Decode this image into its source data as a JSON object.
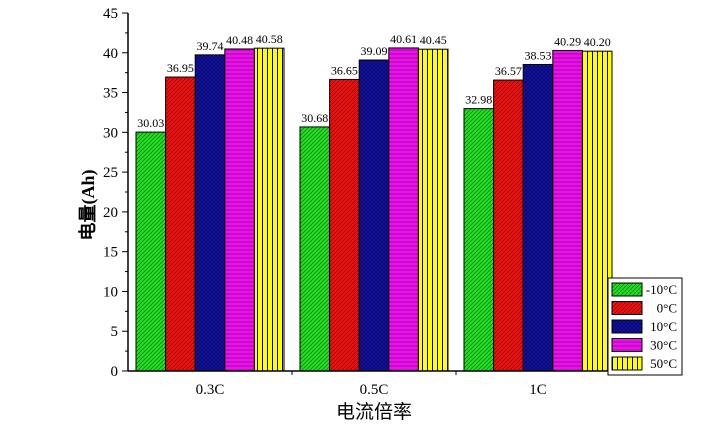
{
  "chart_data": {
    "type": "bar",
    "title": "",
    "xlabel": "电流倍率",
    "ylabel": "电量(Ah)",
    "ylim": [
      0,
      45
    ],
    "yticks": [
      0,
      5,
      10,
      15,
      20,
      25,
      30,
      35,
      40,
      45
    ],
    "categories": [
      "0.3C",
      "0.5C",
      "1C"
    ],
    "grid": false,
    "legend_position": "bottom-right",
    "series": [
      {
        "name": "-10°C",
        "color": "#22dd22",
        "pattern": "diagonal",
        "values": [
          30.03,
          30.68,
          32.98
        ],
        "labels": [
          "30.03",
          "30.68",
          "32.98"
        ]
      },
      {
        "name": "0°C",
        "color": "#ee1111",
        "pattern": "diagonal",
        "values": [
          36.95,
          36.65,
          36.57
        ],
        "labels": [
          "36.95",
          "36.65",
          "36.57"
        ]
      },
      {
        "name": "10°C",
        "color": "#1111aa",
        "pattern": "crosshatch",
        "values": [
          39.74,
          39.09,
          38.53
        ],
        "labels": [
          "39.74",
          "39.09",
          "38.53"
        ]
      },
      {
        "name": "30°C",
        "color": "#ee11ee",
        "pattern": "horizontal",
        "values": [
          40.48,
          40.61,
          40.29
        ],
        "labels": [
          "40.48",
          "40.61",
          "40.29"
        ]
      },
      {
        "name": "50°C",
        "color": "#ffff00",
        "pattern": "vertical",
        "values": [
          40.58,
          40.45,
          40.2
        ],
        "labels": [
          "40.58",
          "40.45",
          "40.20"
        ]
      }
    ]
  }
}
